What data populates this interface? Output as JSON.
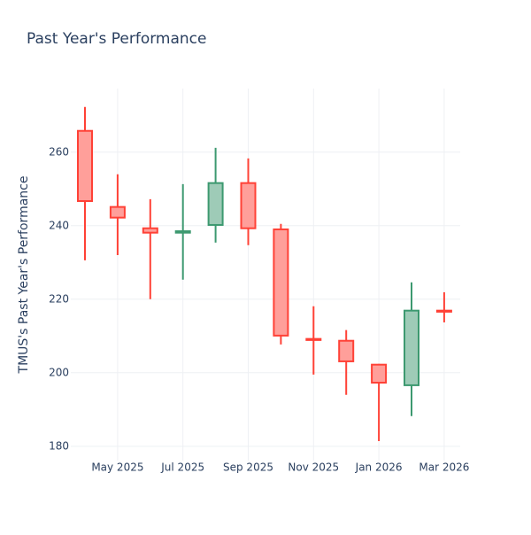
{
  "chart_data": {
    "type": "candlestick",
    "title": "Past Year's Performance",
    "y_label": "TMUS's Past Year's Performance",
    "x": [
      "Apr 2025",
      "May 2025",
      "Jun 2025",
      "Jul 2025",
      "Aug 2025",
      "Sep 2025",
      "Oct 2025",
      "Nov 2025",
      "Dec 2025",
      "Jan 2026",
      "Feb 2026",
      "Mar 2026"
    ],
    "open": [
      265.8,
      245.1,
      239.3,
      238.1,
      240.2,
      251.6,
      239.0,
      209.2,
      208.7,
      202.2,
      196.6,
      216.9
    ],
    "high": [
      272.3,
      254.0,
      247.2,
      251.3,
      261.2,
      258.3,
      240.5,
      218.1,
      211.6,
      202.4,
      224.6,
      221.9
    ],
    "low": [
      230.6,
      232.0,
      220.0,
      225.3,
      235.4,
      234.7,
      207.7,
      199.5,
      194.0,
      181.4,
      188.2,
      213.7
    ],
    "close": [
      246.7,
      242.2,
      238.1,
      238.5,
      251.6,
      239.3,
      210.1,
      208.9,
      203.1,
      197.3,
      216.9,
      216.6
    ],
    "increasing_color": "#3d9970",
    "increasing_fill": "#9ecbb7",
    "decreasing_color": "#ff4136",
    "decreasing_fill": "#ff9f9a",
    "xticks": [
      "May 2025",
      "Jul 2025",
      "Sep 2025",
      "Nov 2025",
      "Jan 2026",
      "Mar 2026"
    ],
    "ylim": [
      176.1,
      277.3
    ],
    "yticks": [
      180,
      200,
      220,
      240,
      260
    ],
    "grid": true
  }
}
